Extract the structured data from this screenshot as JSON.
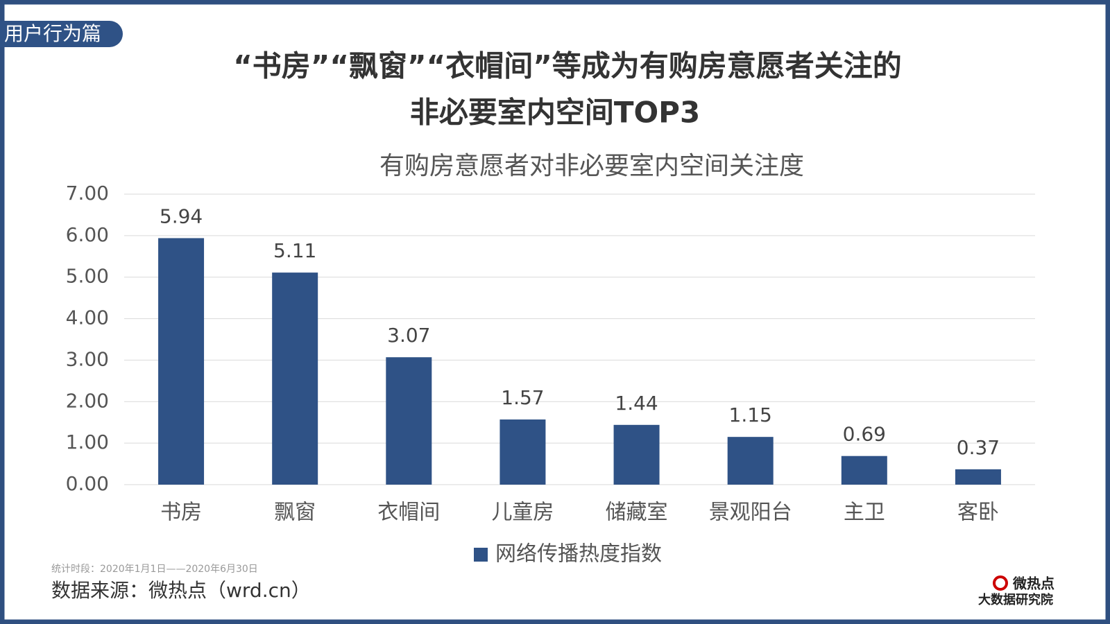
{
  "tag": "用户行为篇",
  "headline": [
    "“书房”“飘窗”“衣帽间”等成为有购房意愿者关注的",
    "非必要室内空间TOP3"
  ],
  "chart_data": {
    "type": "bar",
    "title": "有购房意愿者对非必要室内空间关注度",
    "categories": [
      "书房",
      "飘窗",
      "衣帽间",
      "儿童房",
      "储藏室",
      "景观阳台",
      "主卫",
      "客卧"
    ],
    "series": [
      {
        "name": "网络传播热度指数",
        "color": "#2f5286",
        "values": [
          5.94,
          5.11,
          3.07,
          1.57,
          1.44,
          1.15,
          0.69,
          0.37
        ]
      }
    ],
    "ylim": [
      0,
      7
    ],
    "yticks": [
      {
        "value": 0,
        "label": "0.00"
      },
      {
        "value": 1,
        "label": "1.00"
      },
      {
        "value": 2,
        "label": "2.00"
      },
      {
        "value": 3,
        "label": "3.00"
      },
      {
        "value": 4,
        "label": "4.00"
      },
      {
        "value": 5,
        "label": "5.00"
      },
      {
        "value": 6,
        "label": "6.00"
      },
      {
        "value": 7,
        "label": "7.00"
      }
    ],
    "grid": true,
    "legend": "bottom"
  },
  "footer": {
    "period": "统计时段：2020年1月1日——2020年6月30日",
    "source": "数据来源：微热点（wrd.cn）",
    "logo": [
      "微热点",
      "大数据研究院"
    ]
  }
}
